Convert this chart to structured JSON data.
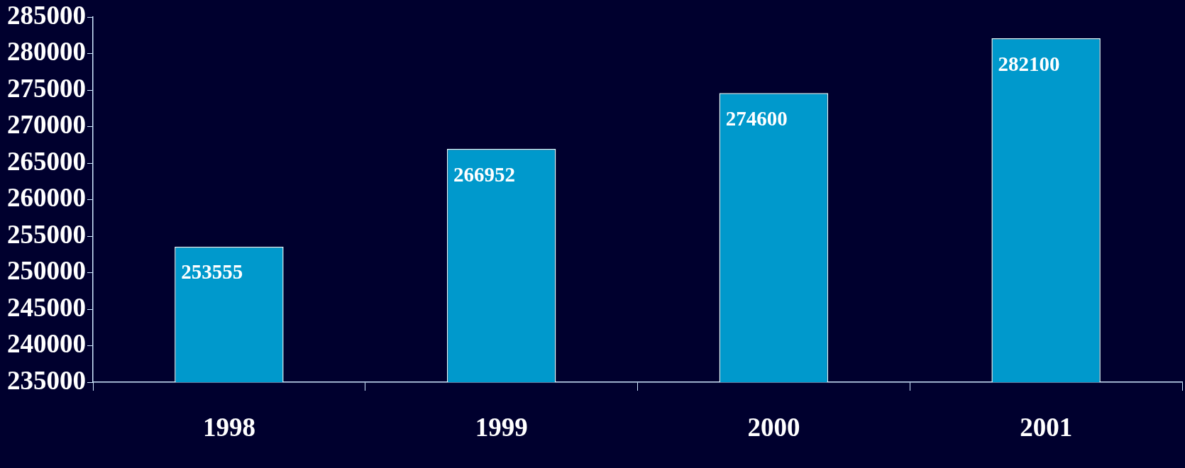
{
  "chart_data": {
    "type": "bar",
    "categories": [
      "1998",
      "1999",
      "2000",
      "2001"
    ],
    "values": [
      253555,
      266952,
      274600,
      282100
    ],
    "color": "#0099cc",
    "ylim": [
      235000,
      285000
    ],
    "yticks": [
      235000,
      240000,
      245000,
      250000,
      255000,
      260000,
      265000,
      270000,
      275000,
      280000,
      285000
    ],
    "grid": false,
    "legend": false,
    "data_labels": true
  }
}
